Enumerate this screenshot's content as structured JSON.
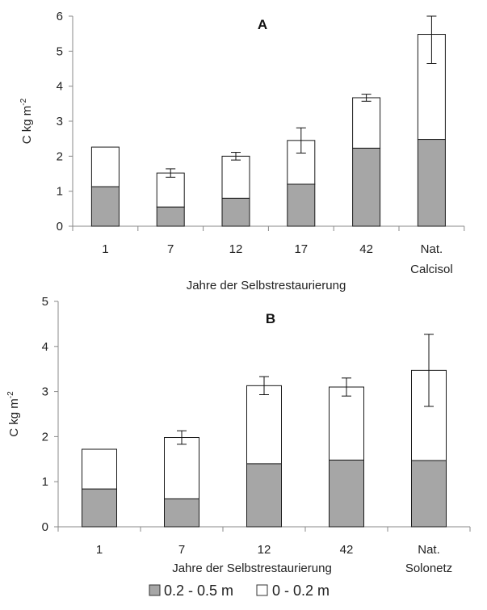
{
  "chart_data": [
    {
      "type": "bar",
      "stacked": true,
      "title": "A",
      "ylabel": "C kg m-2",
      "ylabel_base": "C kg m",
      "ylabel_sup": "-2",
      "xlabel": "Jahre der Selbstrestaurierung",
      "ylim": [
        0,
        6
      ],
      "yticks": [
        "0",
        "1",
        "2",
        "3",
        "4",
        "5",
        "6"
      ],
      "categories": [
        {
          "line1": "1",
          "line2": ""
        },
        {
          "line1": "7",
          "line2": ""
        },
        {
          "line1": "12",
          "line2": ""
        },
        {
          "line1": "17",
          "line2": ""
        },
        {
          "line1": "42",
          "line2": ""
        },
        {
          "line1": "Nat.",
          "line2": "Calcisol"
        }
      ],
      "series": [
        {
          "name": "0.2 - 0.5 m",
          "values": [
            1.13,
            0.55,
            0.8,
            1.2,
            2.23,
            2.48
          ]
        },
        {
          "name": "0 - 0.2 m",
          "values": [
            1.13,
            0.97,
            1.2,
            1.25,
            1.44,
            3.0
          ]
        }
      ],
      "error_bars": [
        null,
        0.12,
        0.11,
        0.36,
        0.1,
        0.83
      ],
      "grid": false
    },
    {
      "type": "bar",
      "stacked": true,
      "title": "B",
      "ylabel": "C kg m-2",
      "ylabel_base": "C kg m",
      "ylabel_sup": "-2",
      "xlabel": "Jahre der Selbstrestaurierung",
      "ylim": [
        0,
        5
      ],
      "yticks": [
        "0",
        "1",
        "2",
        "3",
        "4",
        "5"
      ],
      "categories": [
        {
          "line1": "1",
          "line2": ""
        },
        {
          "line1": "7",
          "line2": ""
        },
        {
          "line1": "12",
          "line2": ""
        },
        {
          "line1": "42",
          "line2": ""
        },
        {
          "line1": "Nat.",
          "line2": "Solonetz"
        }
      ],
      "series": [
        {
          "name": "0.2 - 0.5 m",
          "values": [
            0.84,
            0.62,
            1.4,
            1.48,
            1.47
          ]
        },
        {
          "name": "0 - 0.2 m",
          "values": [
            0.88,
            1.36,
            1.73,
            1.62,
            2.0
          ]
        }
      ],
      "error_bars": [
        null,
        0.15,
        0.2,
        0.2,
        0.8
      ],
      "grid": false
    }
  ],
  "legend": {
    "items": [
      {
        "label": "0.2 - 0.5 m",
        "color": "#a6a6a6"
      },
      {
        "label": "0 - 0.2 m",
        "color": "#ffffff"
      }
    ],
    "placement": "bottom"
  },
  "colors": {
    "dark": "#a6a6a6",
    "light": "#ffffff",
    "edge": "#1a1a1a"
  }
}
